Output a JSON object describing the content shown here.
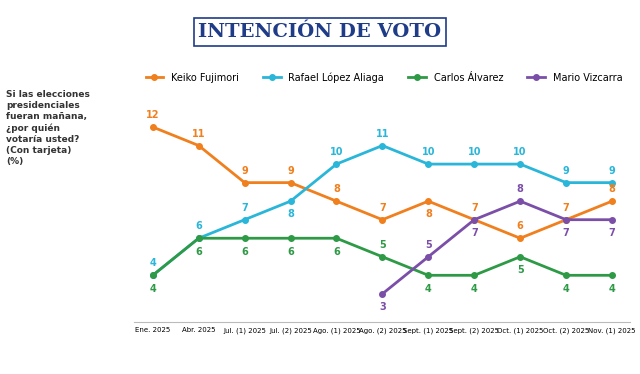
{
  "chart_data": {
    "type": "line",
    "title": "INTENCIÓN DE VOTO",
    "subtitle": "Si las elecciones\npresidenciales\nfueran mañana,\n¿por quién\nvotaría usted?\n(Con tarjeta)\n(%)",
    "categories": [
      "Ene. 2025",
      "Abr. 2025",
      "Jul. (1) 2025",
      "Jul. (2) 2025",
      "Ago. (1) 2025",
      "Ago. (2) 2025",
      "Sept. (1) 2025",
      "Sept. (2) 2025",
      "Oct. (1) 2025",
      "Oct. (2) 2025",
      "Nov. (1) 2025"
    ],
    "series": [
      {
        "name": "Keiko Fujimori",
        "color": "#f07f1d",
        "values": [
          12,
          11,
          9,
          9,
          8,
          7,
          8,
          7,
          6,
          7,
          8
        ]
      },
      {
        "name": "Rafael López Aliaga",
        "color": "#29b6d9",
        "values": [
          4,
          6,
          7,
          8,
          10,
          11,
          10,
          10,
          10,
          9,
          9
        ]
      },
      {
        "name": "Carlos Álvarez",
        "color": "#2e9a46",
        "values": [
          4,
          6,
          6,
          6,
          6,
          5,
          4,
          4,
          5,
          4,
          4
        ]
      },
      {
        "name": "Mario Vizcarra",
        "color": "#7b4fa8",
        "values": [
          null,
          null,
          null,
          null,
          null,
          3,
          5,
          7,
          8,
          7,
          7
        ]
      }
    ],
    "ylim": [
      1.5,
      12.8
    ],
    "tick_labels": "x",
    "grid": false,
    "legend": "upper center",
    "data_labels": true,
    "marker": "o",
    "line_style": "solid"
  }
}
